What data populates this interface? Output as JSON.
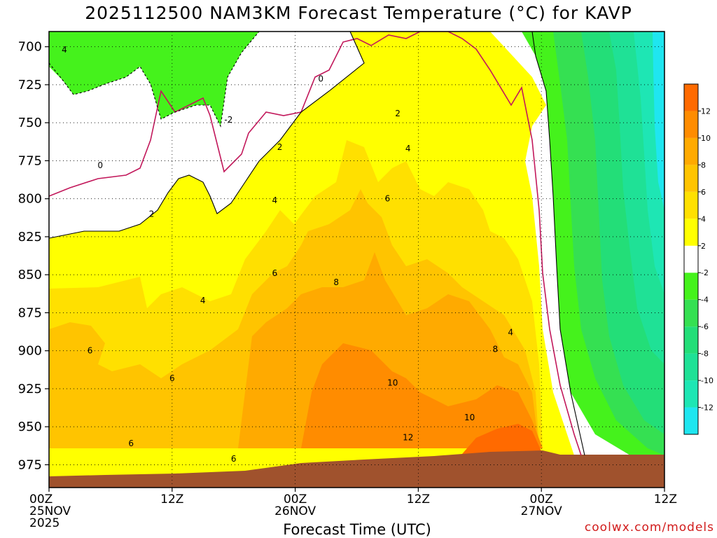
{
  "chart_data": {
    "type": "heatmap",
    "title": "2025112500 NAM3KM Forecast Temperature (°C) for KAVP",
    "xlabel": "Forecast Time (UTC)",
    "ylabel": "",
    "credit": "coolwx.com/models",
    "x_ticks": [
      {
        "hours": 0,
        "lines": [
          "00Z",
          "25NOV",
          "2025"
        ]
      },
      {
        "hours": 12,
        "lines": [
          "12Z"
        ]
      },
      {
        "hours": 24,
        "lines": [
          "00Z",
          "26NOV"
        ]
      },
      {
        "hours": 36,
        "lines": [
          "12Z"
        ]
      },
      {
        "hours": 48,
        "lines": [
          "00Z",
          "27NOV"
        ]
      },
      {
        "hours": 60,
        "lines": [
          "12Z"
        ]
      }
    ],
    "x_range_hours": [
      0,
      60
    ],
    "y_ticks": [
      700,
      725,
      750,
      775,
      800,
      825,
      850,
      875,
      900,
      925,
      950,
      975
    ],
    "y_range_hPa": [
      690,
      990
    ],
    "grid": true,
    "colorbar": {
      "position": "right",
      "levels": [
        -14,
        -12,
        -10,
        -8,
        -6,
        -4,
        -2,
        2,
        4,
        6,
        8,
        10,
        12,
        14
      ],
      "labels": [
        "-12",
        "-10",
        "-8",
        "-6",
        "-4",
        "-2",
        "2",
        "4",
        "6",
        "8",
        "10",
        "12"
      ],
      "colors": [
        "#1fe6f0",
        "#1ee6b4",
        "#1fe196",
        "#23de78",
        "#35e052",
        "#45f21c",
        "#ffffff",
        "#ffff00",
        "#ffe000",
        "#ffc400",
        "#ffaa00",
        "#ff8c00",
        "#ff6a00"
      ]
    },
    "terrain_color": "#a0522d",
    "surface_hPa": [
      {
        "hour": 0,
        "p": 980
      },
      {
        "hour": 10,
        "p": 979
      },
      {
        "hour": 20,
        "p": 977
      },
      {
        "hour": 26,
        "p": 975
      },
      {
        "hour": 32,
        "p": 974
      },
      {
        "hour": 40,
        "p": 973
      },
      {
        "hour": 47,
        "p": 971
      },
      {
        "hour": 50,
        "p": 973
      },
      {
        "hour": 60,
        "p": 973
      }
    ],
    "contour_labels": [
      {
        "text": "4",
        "hour": 1.5,
        "p": 702
      },
      {
        "text": "-2",
        "hour": 17.5,
        "p": 748
      },
      {
        "text": "0",
        "hour": 5.0,
        "p": 778
      },
      {
        "text": "0",
        "hour": 26.5,
        "p": 721
      },
      {
        "text": "2",
        "hour": 10.0,
        "p": 810
      },
      {
        "text": "2",
        "hour": 22.5,
        "p": 766
      },
      {
        "text": "2",
        "hour": 34.0,
        "p": 744
      },
      {
        "text": "4",
        "hour": 22.0,
        "p": 801
      },
      {
        "text": "4",
        "hour": 35.0,
        "p": 767
      },
      {
        "text": "4",
        "hour": 15.0,
        "p": 867
      },
      {
        "text": "4",
        "hour": 45.0,
        "p": 888
      },
      {
        "text": "6",
        "hour": 33.0,
        "p": 800
      },
      {
        "text": "6",
        "hour": 22.0,
        "p": 849
      },
      {
        "text": "6",
        "hour": 4.0,
        "p": 900
      },
      {
        "text": "6",
        "hour": 12.0,
        "p": 918
      },
      {
        "text": "6",
        "hour": 8.0,
        "p": 961
      },
      {
        "text": "6",
        "hour": 18.0,
        "p": 971
      },
      {
        "text": "8",
        "hour": 28.0,
        "p": 855
      },
      {
        "text": "8",
        "hour": 43.5,
        "p": 899
      },
      {
        "text": "10",
        "hour": 33.5,
        "p": 921
      },
      {
        "text": "10",
        "hour": 41.0,
        "p": 944
      },
      {
        "text": "12",
        "hour": 35.0,
        "p": 957
      }
    ]
  }
}
